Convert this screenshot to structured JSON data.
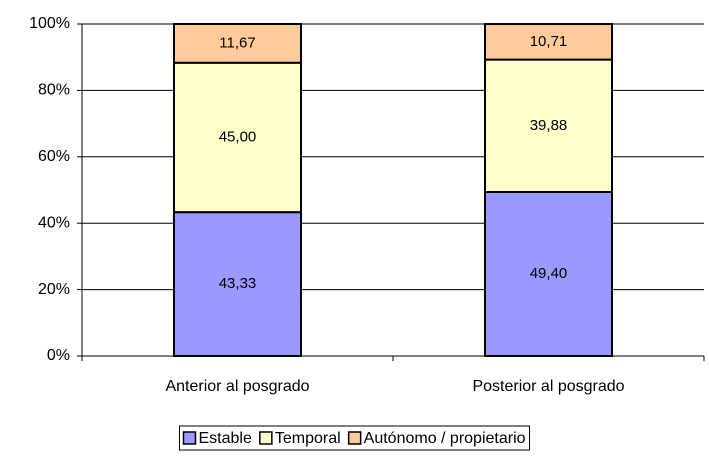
{
  "chart_data": {
    "type": "stacked_bar",
    "categories": [
      "Anterior al posgrado",
      "Posterior al posgrado"
    ],
    "series": [
      {
        "name": "Estable",
        "color": "#9999ff",
        "values": [
          43.33,
          49.4
        ],
        "value_labels": [
          "43,33",
          "49,40"
        ]
      },
      {
        "name": "Temporal",
        "color": "#ffffcc",
        "values": [
          45.0,
          39.88
        ],
        "value_labels": [
          "45,00",
          "39,88"
        ]
      },
      {
        "name": "Autónomo / propietario",
        "color": "#ffcc99",
        "values": [
          11.67,
          10.71
        ],
        "value_labels": [
          "11,67",
          "10,71"
        ]
      }
    ],
    "ylim": [
      0,
      100
    ],
    "yticks": [
      {
        "value": 0,
        "label": "0%"
      },
      {
        "value": 20,
        "label": "20%"
      },
      {
        "value": 40,
        "label": "40%"
      },
      {
        "value": 60,
        "label": "60%"
      },
      {
        "value": 80,
        "label": "80%"
      },
      {
        "value": 100,
        "label": "100%"
      }
    ],
    "grid": true,
    "legend": "bottom"
  }
}
